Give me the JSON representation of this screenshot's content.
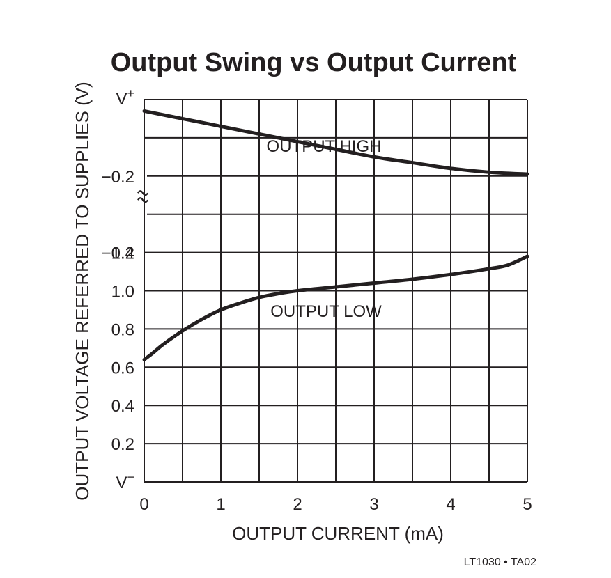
{
  "chart_data": {
    "type": "line",
    "title": "Output Swing vs Output Current",
    "xlabel": "OUTPUT CURRENT (mA)",
    "ylabel": "OUTPUT VOLTAGE REFERRED TO SUPPLIES (V)",
    "xlim": [
      0,
      5
    ],
    "x_ticks": [
      "0",
      "1",
      "2",
      "3",
      "4",
      "5"
    ],
    "upper_panel": {
      "ylim": [
        0,
        -0.4
      ],
      "y_ticks": [
        "V+",
        "−0.2",
        "−0.4"
      ],
      "reference": "V+"
    },
    "lower_panel": {
      "ylim": [
        0,
        1.2
      ],
      "y_ticks": [
        "V−",
        "0.2",
        "0.4",
        "0.6",
        "0.8",
        "1.0",
        "1.2"
      ],
      "reference": "V−"
    },
    "axis_break": true,
    "grid": true,
    "series": [
      {
        "name": "OUTPUT HIGH",
        "panel": "upper",
        "x": [
          0,
          0.5,
          1,
          1.5,
          2,
          2.5,
          3,
          3.5,
          4,
          4.5,
          5
        ],
        "y": [
          -0.03,
          -0.05,
          -0.07,
          -0.09,
          -0.11,
          -0.13,
          -0.15,
          -0.165,
          -0.18,
          -0.19,
          -0.195
        ]
      },
      {
        "name": "OUTPUT LOW",
        "panel": "lower",
        "x": [
          0,
          0.1,
          0.25,
          0.5,
          0.75,
          1,
          1.25,
          1.5,
          1.75,
          2,
          2.5,
          3,
          3.5,
          4,
          4.5,
          4.75,
          5
        ],
        "y": [
          0.64,
          0.67,
          0.72,
          0.79,
          0.85,
          0.9,
          0.935,
          0.965,
          0.985,
          1.0,
          1.02,
          1.04,
          1.06,
          1.085,
          1.115,
          1.135,
          1.18
        ]
      }
    ],
    "annotations": [
      "OUTPUT HIGH",
      "OUTPUT LOW"
    ],
    "footer": "LT1030 • TA02"
  }
}
